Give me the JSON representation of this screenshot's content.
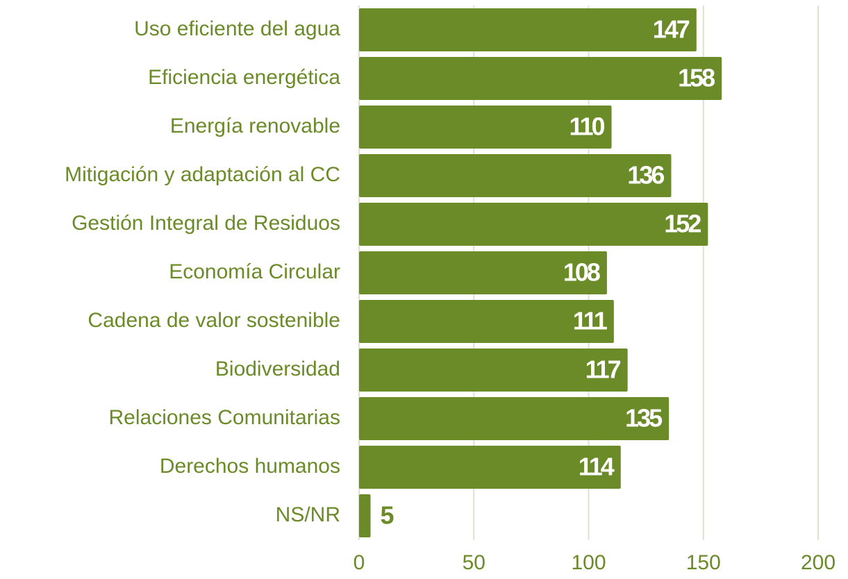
{
  "chart_data": {
    "type": "bar",
    "orientation": "horizontal",
    "categories": [
      "Uso eficiente del agua",
      "Eficiencia energética",
      "Energía renovable",
      "Mitigación y adaptación al CC",
      "Gestión Integral de Residuos",
      "Economía Circular",
      "Cadena de valor sostenible",
      "Biodiversidad",
      "Relaciones Comunitarias",
      "Derechos humanos",
      "NS/NR"
    ],
    "values": [
      147,
      158,
      110,
      136,
      152,
      108,
      111,
      117,
      135,
      114,
      5
    ],
    "color": "#6b8a28",
    "xlim": [
      0,
      200
    ],
    "xticks": [
      0,
      50,
      100,
      150,
      200
    ],
    "grid": true
  }
}
